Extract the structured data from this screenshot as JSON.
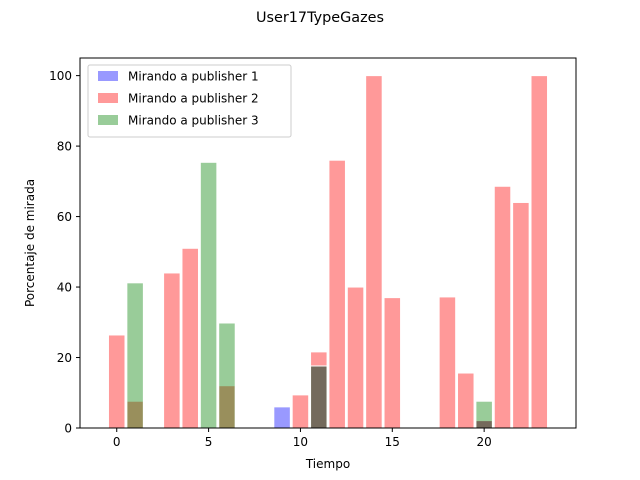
{
  "chart_data": {
    "type": "bar",
    "title": "User17TypeGazes",
    "xlabel": "Tiempo",
    "ylabel": "Porcentaje de mirada",
    "xlim": [
      -2,
      25
    ],
    "ylim": [
      0,
      105
    ],
    "xticks": [
      0,
      5,
      10,
      15,
      20
    ],
    "yticks": [
      0,
      20,
      40,
      60,
      80,
      100
    ],
    "bar_width": 0.9,
    "grid": false,
    "legend_position": "top-left",
    "series": [
      {
        "name": "Mirando a publisher 1",
        "color": "#0000ff",
        "points": [
          {
            "x": 9,
            "y": 6
          },
          {
            "x": 11,
            "y": 17.6
          },
          {
            "x": 20,
            "y": 2.1
          }
        ]
      },
      {
        "name": "Mirando a publisher 2",
        "color": "#ff0000",
        "points": [
          {
            "x": 0,
            "y": 26.4
          },
          {
            "x": 1,
            "y": 7.6
          },
          {
            "x": 3,
            "y": 44
          },
          {
            "x": 4,
            "y": 51
          },
          {
            "x": 6,
            "y": 12
          },
          {
            "x": 10,
            "y": 9.4
          },
          {
            "x": 11,
            "y": 21.6
          },
          {
            "x": 12,
            "y": 76
          },
          {
            "x": 13,
            "y": 40
          },
          {
            "x": 14,
            "y": 100
          },
          {
            "x": 15,
            "y": 37
          },
          {
            "x": 18,
            "y": 37.2
          },
          {
            "x": 19,
            "y": 15.6
          },
          {
            "x": 20,
            "y": 2.1
          },
          {
            "x": 21,
            "y": 68.6
          },
          {
            "x": 22,
            "y": 64
          },
          {
            "x": 23,
            "y": 100
          }
        ]
      },
      {
        "name": "Mirando a publisher 3",
        "color": "#008000",
        "points": [
          {
            "x": 1,
            "y": 41.2
          },
          {
            "x": 5,
            "y": 75.4
          },
          {
            "x": 6,
            "y": 29.8
          },
          {
            "x": 11,
            "y": 17.6
          },
          {
            "x": 20,
            "y": 7.6
          }
        ]
      }
    ]
  }
}
